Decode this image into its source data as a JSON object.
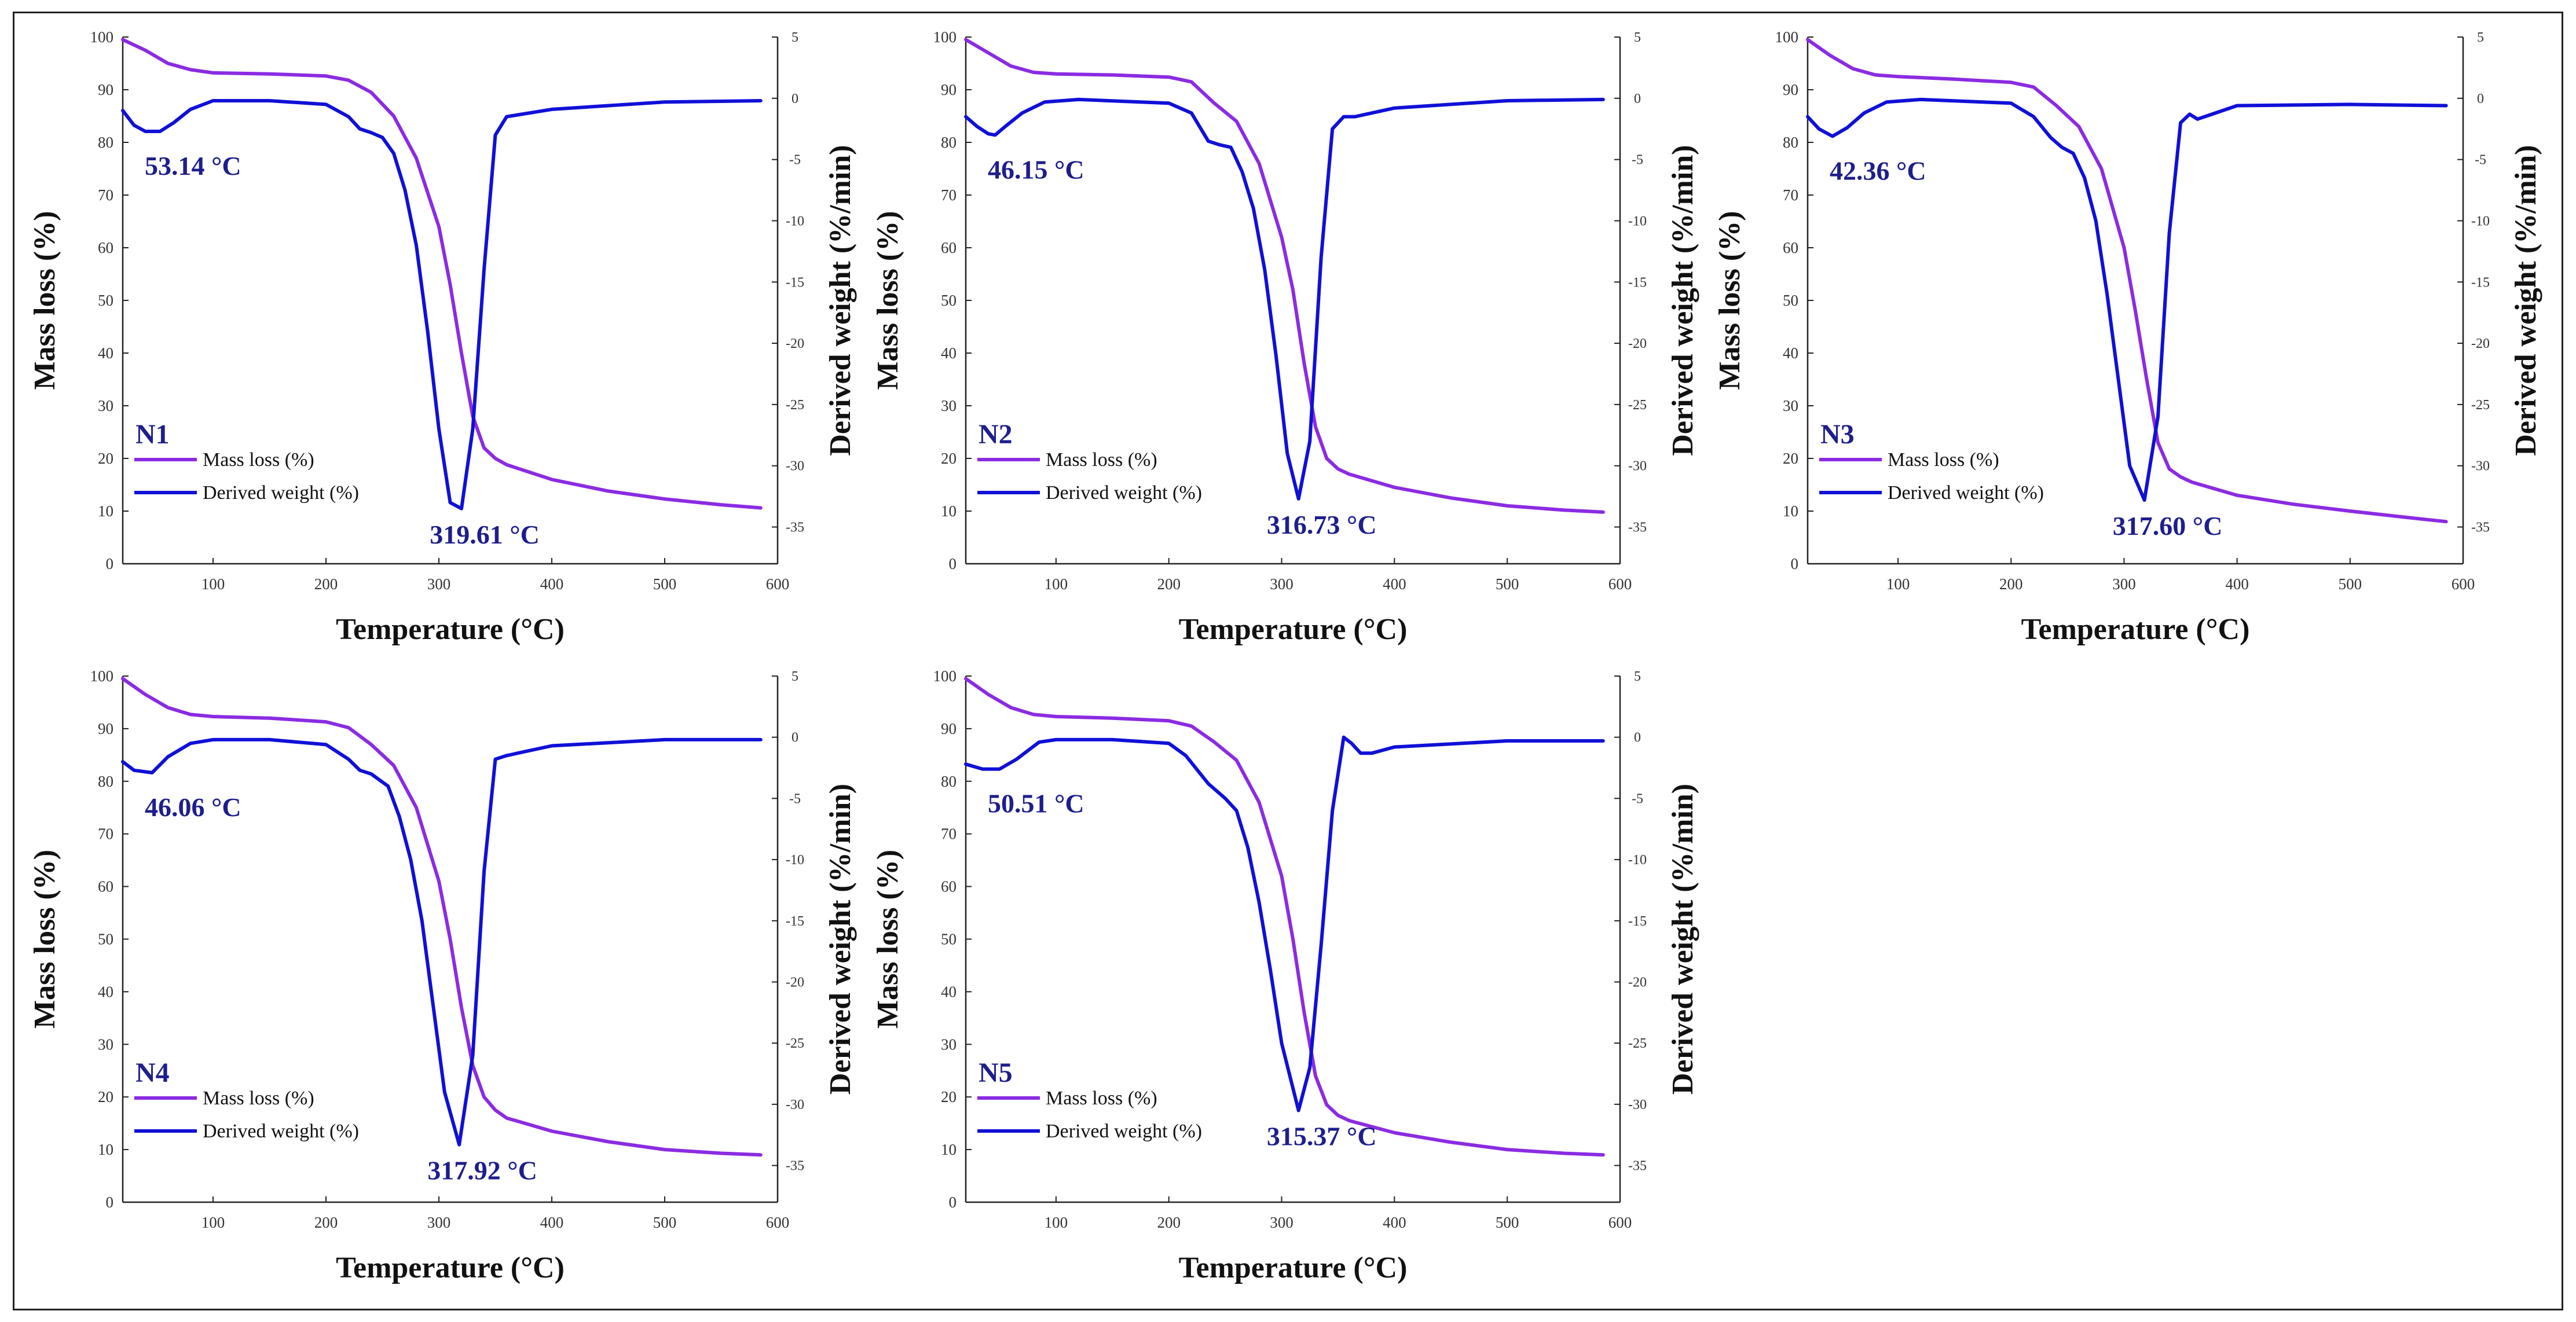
{
  "colors": {
    "mass": "#8b2be2",
    "derived": "#1010d8",
    "annot": "#1e1e8c",
    "axis": "#222222"
  },
  "chart_data": [
    {
      "type": "line",
      "panel_label": "N1",
      "xlabel": "Temperature (°C)",
      "ylabel": "Mass loss (%)",
      "y2label": "Derived weight (%/min)",
      "xlim": [
        20,
        600
      ],
      "ylim": [
        0,
        100
      ],
      "y2lim": [
        -38,
        5
      ],
      "xticks": [
        100,
        200,
        300,
        400,
        500,
        600
      ],
      "yticks": [
        0,
        10,
        20,
        30,
        40,
        50,
        60,
        70,
        80,
        90,
        100
      ],
      "y2ticks": [
        5,
        0,
        -5,
        -10,
        -15,
        -20,
        -25,
        -30,
        -35
      ],
      "legend": [
        "Mass loss (%)",
        "Derived weight (%)"
      ],
      "annotations": {
        "low_peak": "53.14 °C",
        "main_peak": "319.61 °C"
      },
      "series": [
        {
          "name": "Mass loss (%)",
          "axis": "left",
          "x": [
            20,
            40,
            60,
            80,
            100,
            150,
            200,
            220,
            240,
            260,
            280,
            300,
            310,
            320,
            330,
            340,
            350,
            360,
            400,
            450,
            500,
            550,
            585
          ],
          "y": [
            99.5,
            97.5,
            95,
            93.8,
            93.2,
            93,
            92.6,
            91.8,
            89.5,
            85,
            77,
            64,
            53,
            40,
            28,
            22,
            20,
            18.8,
            16,
            13.8,
            12.3,
            11.2,
            10.6
          ]
        },
        {
          "name": "Derived weight (%)",
          "axis": "right",
          "x": [
            20,
            30,
            40,
            53,
            65,
            80,
            100,
            150,
            200,
            220,
            230,
            240,
            250,
            260,
            270,
            280,
            290,
            300,
            310,
            320,
            330,
            340,
            350,
            360,
            400,
            500,
            585
          ],
          "y": [
            -1,
            -2.2,
            -2.7,
            -2.7,
            -2,
            -0.9,
            -0.2,
            -0.2,
            -0.5,
            -1.5,
            -2.5,
            -2.8,
            -3.2,
            -4.5,
            -7.5,
            -12,
            -19,
            -27,
            -33,
            -33.5,
            -27,
            -14,
            -3,
            -1.5,
            -0.9,
            -0.3,
            -0.2
          ]
        }
      ]
    },
    {
      "type": "line",
      "panel_label": "N2",
      "xlabel": "Temperature (°C)",
      "ylabel": "Mass loss (%)",
      "y2label": "Derived weight (%/min)",
      "xlim": [
        20,
        600
      ],
      "ylim": [
        0,
        100
      ],
      "y2lim": [
        -38,
        5
      ],
      "xticks": [
        100,
        200,
        300,
        400,
        500,
        600
      ],
      "yticks": [
        0,
        10,
        20,
        30,
        40,
        50,
        60,
        70,
        80,
        90,
        100
      ],
      "y2ticks": [
        5,
        0,
        -5,
        -10,
        -15,
        -20,
        -25,
        -30,
        -35
      ],
      "legend": [
        "Mass loss (%)",
        "Derived weight (%)"
      ],
      "annotations": {
        "low_peak": "46.15 °C",
        "main_peak": "316.73 °C"
      },
      "series": [
        {
          "name": "Mass loss (%)",
          "axis": "left",
          "x": [
            20,
            40,
            60,
            80,
            100,
            150,
            200,
            220,
            240,
            260,
            280,
            300,
            310,
            320,
            330,
            340,
            350,
            360,
            400,
            450,
            500,
            550,
            585
          ],
          "y": [
            99.5,
            97,
            94.5,
            93.3,
            93,
            92.8,
            92.4,
            91.5,
            87.5,
            84,
            76,
            62,
            52,
            38,
            26,
            20,
            18,
            17,
            14.5,
            12.5,
            11,
            10.2,
            9.8
          ]
        },
        {
          "name": "Derived weight (%)",
          "axis": "right",
          "x": [
            20,
            30,
            40,
            46,
            55,
            70,
            90,
            120,
            200,
            220,
            235,
            245,
            255,
            265,
            275,
            285,
            295,
            305,
            315,
            325,
            335,
            345,
            355,
            365,
            400,
            500,
            585
          ],
          "y": [
            -1.5,
            -2.3,
            -2.9,
            -3,
            -2.3,
            -1.2,
            -0.3,
            -0.1,
            -0.4,
            -1.2,
            -3.5,
            -3.8,
            -4,
            -6,
            -9,
            -14,
            -21,
            -29,
            -32.7,
            -28,
            -13,
            -2.5,
            -1.5,
            -1.5,
            -0.8,
            -0.2,
            -0.1
          ]
        }
      ]
    },
    {
      "type": "line",
      "panel_label": "N3",
      "xlabel": "Temperature (°C)",
      "ylabel": "Mass loss (%)",
      "y2label": "Derived weight (%/min)",
      "xlim": [
        20,
        600
      ],
      "ylim": [
        0,
        100
      ],
      "y2lim": [
        -38,
        5
      ],
      "xticks": [
        100,
        200,
        300,
        400,
        500,
        600
      ],
      "yticks": [
        0,
        10,
        20,
        30,
        40,
        50,
        60,
        70,
        80,
        90,
        100
      ],
      "y2ticks": [
        5,
        0,
        -5,
        -10,
        -15,
        -20,
        -25,
        -30,
        -35
      ],
      "legend": [
        "Mass loss (%)",
        "Derived weight (%)"
      ],
      "annotations": {
        "low_peak": "42.36 °C",
        "main_peak": "317.60 °C"
      },
      "series": [
        {
          "name": "Mass loss (%)",
          "axis": "left",
          "x": [
            20,
            40,
            60,
            80,
            100,
            150,
            200,
            220,
            240,
            260,
            280,
            300,
            310,
            320,
            330,
            340,
            350,
            360,
            400,
            450,
            500,
            550,
            585
          ],
          "y": [
            99.5,
            96.5,
            94,
            92.8,
            92.5,
            92,
            91.4,
            90.5,
            87,
            83,
            75,
            60,
            48,
            35,
            23,
            18,
            16.5,
            15.5,
            13,
            11.3,
            10,
            8.8,
            8
          ]
        },
        {
          "name": "Derived weight (%)",
          "axis": "right",
          "x": [
            20,
            30,
            42,
            55,
            70,
            90,
            120,
            200,
            220,
            235,
            245,
            255,
            265,
            275,
            285,
            295,
            305,
            318,
            330,
            340,
            350,
            358,
            365,
            400,
            500,
            585
          ],
          "y": [
            -1.5,
            -2.5,
            -3.1,
            -2.4,
            -1.2,
            -0.3,
            -0.1,
            -0.4,
            -1.5,
            -3.2,
            -4,
            -4.5,
            -6.5,
            -10,
            -16,
            -23,
            -30,
            -32.8,
            -26,
            -11,
            -2,
            -1.3,
            -1.7,
            -0.6,
            -0.5,
            -0.6
          ]
        }
      ]
    },
    {
      "type": "line",
      "panel_label": "N4",
      "xlabel": "Temperature (°C)",
      "ylabel": "Mass loss (%)",
      "y2label": "Derived weight (%/min)",
      "xlim": [
        20,
        600
      ],
      "ylim": [
        0,
        100
      ],
      "y2lim": [
        -38,
        5
      ],
      "xticks": [
        100,
        200,
        300,
        400,
        500,
        600
      ],
      "yticks": [
        0,
        10,
        20,
        30,
        40,
        50,
        60,
        70,
        80,
        90,
        100
      ],
      "y2ticks": [
        5,
        0,
        -5,
        -10,
        -15,
        -20,
        -25,
        -30,
        -35
      ],
      "legend": [
        "Mass loss (%)",
        "Derived weight (%)"
      ],
      "annotations": {
        "low_peak": "46.06 °C",
        "main_peak": "317.92 °C"
      },
      "series": [
        {
          "name": "Mass loss (%)",
          "axis": "left",
          "x": [
            20,
            40,
            60,
            80,
            100,
            150,
            200,
            220,
            240,
            260,
            280,
            300,
            310,
            320,
            330,
            340,
            350,
            360,
            400,
            450,
            500,
            550,
            585
          ],
          "y": [
            99.5,
            96.5,
            94,
            92.7,
            92.3,
            92,
            91.3,
            90.2,
            87,
            83,
            75,
            61,
            50,
            37,
            26,
            20,
            17.5,
            16,
            13.5,
            11.5,
            10,
            9.3,
            9
          ]
        },
        {
          "name": "Derived weight (%)",
          "axis": "right",
          "x": [
            20,
            30,
            46,
            60,
            80,
            100,
            150,
            200,
            220,
            230,
            240,
            255,
            265,
            275,
            285,
            295,
            305,
            318,
            330,
            340,
            350,
            360,
            400,
            500,
            585
          ],
          "y": [
            -2,
            -2.7,
            -2.9,
            -1.6,
            -0.5,
            -0.2,
            -0.2,
            -0.6,
            -1.8,
            -2.7,
            -3,
            -4,
            -6.5,
            -10,
            -15,
            -22,
            -29,
            -33.3,
            -26,
            -11,
            -1.8,
            -1.5,
            -0.7,
            -0.2,
            -0.2
          ]
        }
      ]
    },
    {
      "type": "line",
      "panel_label": "N5",
      "xlabel": "Temperature (°C)",
      "ylabel": "Mass loss (%)",
      "y2label": "Derived weight (%/min)",
      "xlim": [
        20,
        600
      ],
      "ylim": [
        0,
        100
      ],
      "y2lim": [
        -38,
        5
      ],
      "xticks": [
        100,
        200,
        300,
        400,
        500,
        600
      ],
      "yticks": [
        0,
        10,
        20,
        30,
        40,
        50,
        60,
        70,
        80,
        90,
        100
      ],
      "y2ticks": [
        5,
        0,
        -5,
        -10,
        -15,
        -20,
        -25,
        -30,
        -35
      ],
      "legend": [
        "Mass loss (%)",
        "Derived weight (%)"
      ],
      "annotations": {
        "low_peak": "50.51 °C",
        "main_peak": "315.37 °C"
      },
      "series": [
        {
          "name": "Mass loss (%)",
          "axis": "left",
          "x": [
            20,
            40,
            60,
            80,
            100,
            150,
            200,
            220,
            240,
            260,
            280,
            300,
            310,
            320,
            330,
            340,
            350,
            360,
            400,
            450,
            500,
            550,
            585
          ],
          "y": [
            99.5,
            96.5,
            94,
            92.7,
            92.3,
            92,
            91.5,
            90.5,
            87.5,
            84,
            76,
            62,
            50,
            36,
            24,
            18.5,
            16.5,
            15.5,
            13.2,
            11.4,
            10,
            9.3,
            9
          ]
        },
        {
          "name": "Derived weight (%)",
          "axis": "right",
          "x": [
            20,
            35,
            50,
            65,
            85,
            100,
            150,
            200,
            215,
            235,
            250,
            260,
            270,
            280,
            290,
            300,
            315,
            325,
            335,
            345,
            355,
            362,
            370,
            380,
            400,
            500,
            585
          ],
          "y": [
            -2.2,
            -2.6,
            -2.6,
            -1.8,
            -0.4,
            -0.2,
            -0.2,
            -0.5,
            -1.5,
            -3.8,
            -5,
            -6,
            -9,
            -13.5,
            -19,
            -25,
            -30.5,
            -27,
            -17,
            -6,
            0,
            -0.5,
            -1.3,
            -1.3,
            -0.8,
            -0.3,
            -0.3
          ]
        }
      ]
    }
  ]
}
